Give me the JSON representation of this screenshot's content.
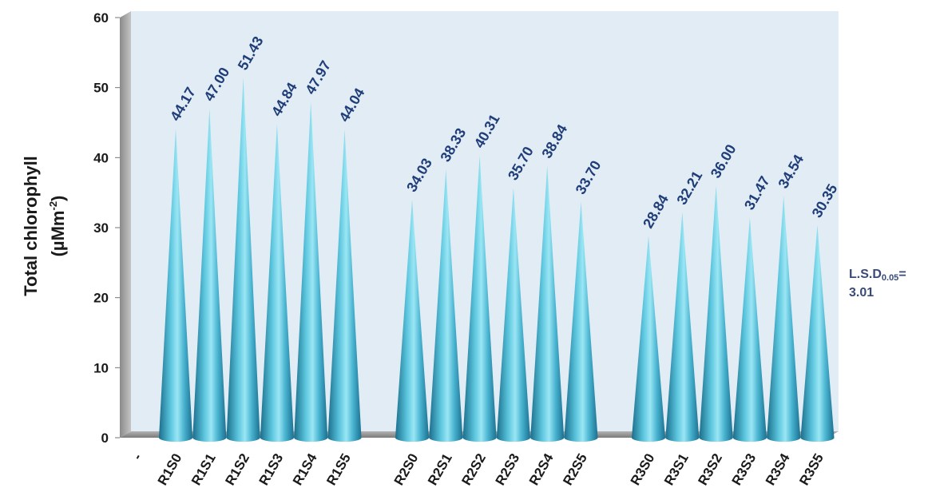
{
  "chart_data": {
    "type": "bar",
    "bar_shape": "cone",
    "y_axis": {
      "label": "Total chlorophyll",
      "unit_prefix": "(µMm",
      "unit_sup": "-2",
      "unit_suffix": ")",
      "ylim": [
        0,
        60
      ],
      "ticks": [
        0,
        10,
        20,
        30,
        40,
        50,
        60
      ]
    },
    "x_axis": {
      "leading_label": "-"
    },
    "groups": [
      {
        "categories": [
          "R1S0",
          "R1S1",
          "R1S2",
          "R1S3",
          "R1S4",
          "R1S5"
        ],
        "values": [
          44.17,
          47.0,
          51.43,
          44.84,
          47.97,
          44.04
        ],
        "labels": [
          "44.17",
          "47.00",
          "51.43",
          "44.84",
          "47.97",
          "44.04"
        ]
      },
      {
        "categories": [
          "R2S0",
          "R2S1",
          "R2S2",
          "R2S3",
          "R2S4",
          "R2S5"
        ],
        "values": [
          34.03,
          38.33,
          40.31,
          35.7,
          38.84,
          33.7
        ],
        "labels": [
          "34.03",
          "38.33",
          "40.31",
          "35.70",
          "38.84",
          "33.70"
        ]
      },
      {
        "categories": [
          "R3S0",
          "R3S1",
          "R3S2",
          "R3S3",
          "R3S4",
          "R3S5"
        ],
        "values": [
          28.84,
          32.21,
          36.0,
          31.47,
          34.54,
          30.35
        ],
        "labels": [
          "28.84",
          "32.21",
          "36.00",
          "31.47",
          "34.54",
          "30.35"
        ]
      }
    ],
    "annotation": {
      "lsd_prefix": "L.S.D",
      "lsd_sub": "0.05",
      "lsd_eq": "=",
      "lsd_value": "3.01"
    },
    "colors": {
      "bar_dark": "#1d7a9a",
      "bar_light": "#8fe0f0",
      "plot_bg": "#e2ecf4",
      "wall": "#a8a8a8",
      "floor": "#8c8c8c",
      "data_label": "#1f3d78"
    },
    "grid": false,
    "legend": "none"
  }
}
